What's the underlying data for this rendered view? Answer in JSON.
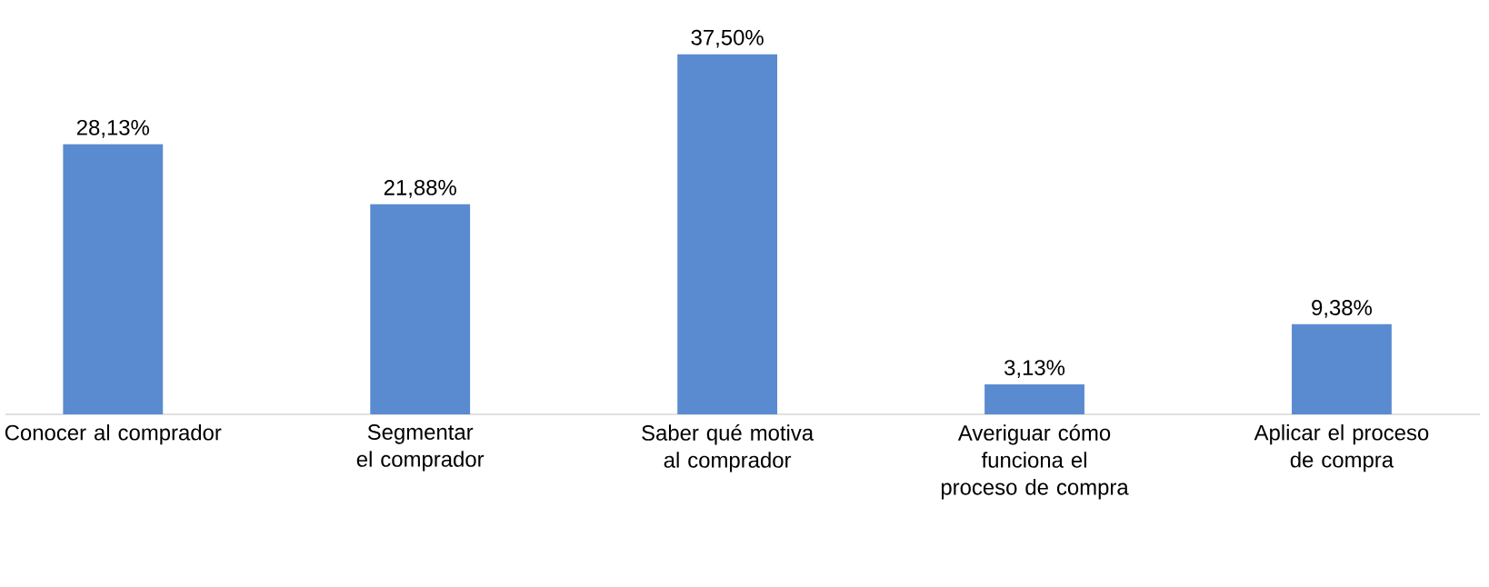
{
  "chart_data": {
    "type": "bar",
    "categories": [
      "Conocer al comprador",
      "Segmentar el comprador",
      "Saber qué motiva al comprador",
      "Averiguar cómo funciona el proceso de compra",
      "Aplicar el proceso de compra"
    ],
    "values": [
      28.13,
      21.88,
      37.5,
      3.13,
      9.38
    ],
    "value_labels": [
      "28,13%",
      "21,88%",
      "37,50%",
      "3,13%",
      "9,38%"
    ],
    "color": "#5a8bd0"
  }
}
